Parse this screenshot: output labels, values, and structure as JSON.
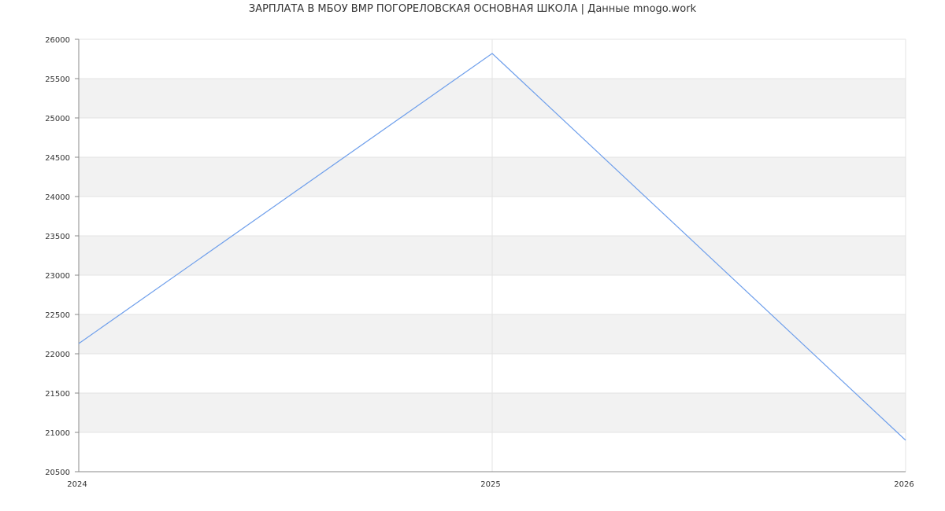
{
  "chart_data": {
    "type": "line",
    "title": "ЗАРПЛАТА В МБОУ ВМР ПОГОРЕЛОВСКАЯ ОСНОВНАЯ ШКОЛА | Данные mnogo.work",
    "xlabel": "",
    "ylabel": "",
    "x": [
      2024,
      2025,
      2026
    ],
    "series": [
      {
        "values": [
          22130,
          25820,
          20900
        ],
        "color": "#6d9eeb"
      }
    ],
    "xlim": [
      2024,
      2026
    ],
    "ylim": [
      20500,
      26000
    ],
    "x_ticks": [
      "2024",
      "2025",
      "2026"
    ],
    "y_ticks": [
      "20500",
      "21000",
      "21500",
      "22000",
      "22500",
      "23000",
      "23500",
      "24000",
      "24500",
      "25000",
      "25500",
      "26000"
    ],
    "grid": true,
    "band_color": "#f2f2f2"
  }
}
